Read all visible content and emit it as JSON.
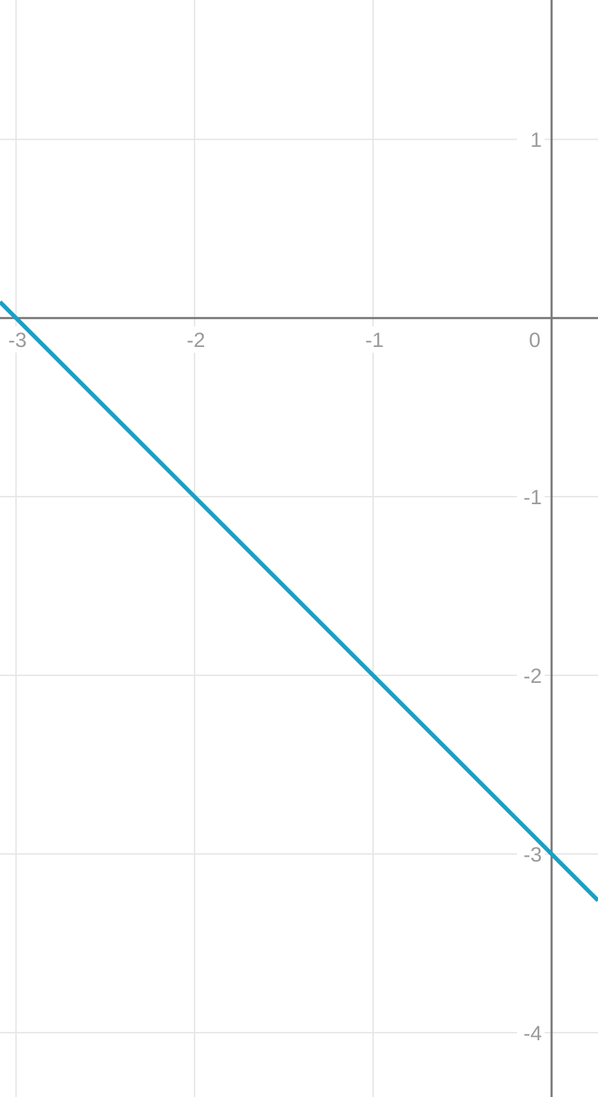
{
  "chart_data": {
    "type": "line",
    "title": "",
    "xlabel": "",
    "ylabel": "",
    "xlim": [
      -3.09,
      0.26
    ],
    "ylim": [
      -4.36,
      1.78
    ],
    "grid": true,
    "x_ticks": [
      "-3",
      "-2",
      "-1",
      "0"
    ],
    "y_ticks": [
      "1",
      "-1",
      "-2",
      "-3",
      "-4"
    ],
    "series": [
      {
        "equation": "y = -x - 3",
        "x": [
          -3.09,
          -3,
          -2,
          -1,
          0,
          0.26
        ],
        "y": [
          0.09,
          0,
          -1,
          -2,
          -3,
          -3.26
        ],
        "color": "#1aa0c4"
      }
    ],
    "colors": {
      "grid": "#e6e6e6",
      "axis": "#777777",
      "tick_label": "#9a9a9a"
    }
  }
}
